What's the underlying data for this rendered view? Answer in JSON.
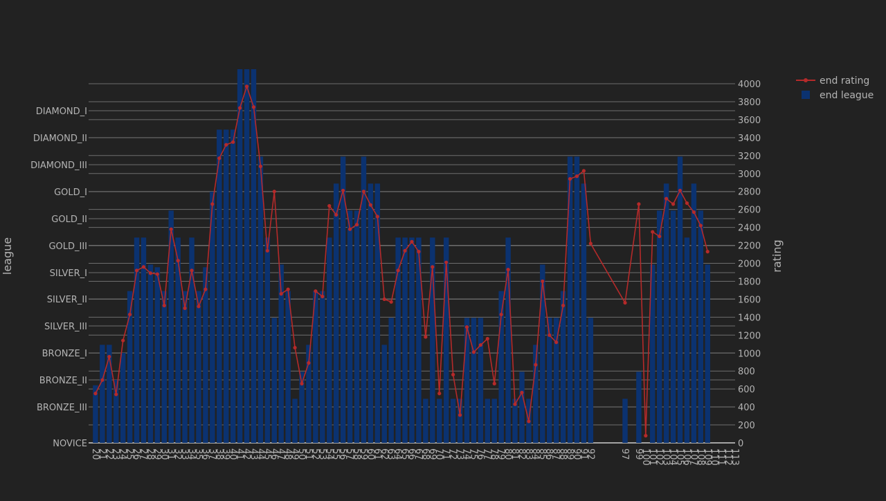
{
  "chart_data": {
    "type": "bar+line",
    "title": "",
    "x_label": "",
    "y_left_label": "league",
    "y_right_label": "rating",
    "y_left_ticks": [
      "NOVICE",
      "BRONZE_III",
      "BRONZE_II",
      "BRONZE_I",
      "SILVER_III",
      "SILVER_II",
      "SILVER_I",
      "GOLD_III",
      "GOLD_II",
      "GOLD_I",
      "DIAMOND_III",
      "DIAMOND_II",
      "DIAMOND_I"
    ],
    "y_right_ticks": [
      0,
      200,
      400,
      600,
      800,
      1000,
      1200,
      1400,
      1600,
      1800,
      2000,
      2200,
      2400,
      2600,
      2800,
      3000,
      3200,
      3400,
      3600,
      3800,
      4000
    ],
    "y_right_range": [
      0,
      4000
    ],
    "x_range": [
      19,
      113
    ],
    "grid": true,
    "legend_position": "top-right",
    "colors": {
      "background": "#222222",
      "bar": "#0b3270",
      "line": "#b52a2a",
      "text": "#b4b4b4",
      "grid": "#6e6e6e"
    },
    "series": [
      {
        "name": "end rating",
        "type": "line",
        "points": [
          [
            20,
            550
          ],
          [
            21,
            700
          ],
          [
            22,
            960
          ],
          [
            23,
            540
          ],
          [
            24,
            1140
          ],
          [
            25,
            1430
          ],
          [
            26,
            1920
          ],
          [
            27,
            1960
          ],
          [
            28,
            1890
          ],
          [
            29,
            1880
          ],
          [
            30,
            1530
          ],
          [
            31,
            2380
          ],
          [
            32,
            2030
          ],
          [
            33,
            1500
          ],
          [
            34,
            1920
          ],
          [
            35,
            1520
          ],
          [
            36,
            1710
          ],
          [
            37,
            2660
          ],
          [
            38,
            3170
          ],
          [
            39,
            3320
          ],
          [
            40,
            3350
          ],
          [
            41,
            3730
          ],
          [
            42,
            3970
          ],
          [
            43,
            3740
          ],
          [
            44,
            3080
          ],
          [
            45,
            2140
          ],
          [
            46,
            2800
          ],
          [
            47,
            1660
          ],
          [
            48,
            1710
          ],
          [
            49,
            1060
          ],
          [
            50,
            660
          ],
          [
            51,
            890
          ],
          [
            52,
            1690
          ],
          [
            53,
            1630
          ],
          [
            54,
            2640
          ],
          [
            55,
            2540
          ],
          [
            56,
            2810
          ],
          [
            57,
            2380
          ],
          [
            58,
            2430
          ],
          [
            59,
            2800
          ],
          [
            60,
            2650
          ],
          [
            61,
            2520
          ],
          [
            62,
            1600
          ],
          [
            63,
            1570
          ],
          [
            64,
            1920
          ],
          [
            65,
            2140
          ],
          [
            66,
            2240
          ],
          [
            67,
            2130
          ],
          [
            68,
            1180
          ],
          [
            69,
            1960
          ],
          [
            70,
            550
          ],
          [
            71,
            2010
          ],
          [
            72,
            760
          ],
          [
            73,
            310
          ],
          [
            74,
            1290
          ],
          [
            75,
            1010
          ],
          [
            76,
            1090
          ],
          [
            77,
            1160
          ],
          [
            78,
            660
          ],
          [
            79,
            1430
          ],
          [
            80,
            1930
          ],
          [
            81,
            430
          ],
          [
            82,
            560
          ],
          [
            83,
            240
          ],
          [
            84,
            870
          ],
          [
            85,
            1800
          ],
          [
            86,
            1200
          ],
          [
            87,
            1120
          ],
          [
            88,
            1530
          ],
          [
            89,
            2940
          ],
          [
            90,
            2970
          ],
          [
            91,
            3030
          ],
          [
            92,
            2220
          ],
          [
            97,
            1560
          ],
          [
            99,
            2660
          ],
          [
            100,
            80
          ],
          [
            101,
            2350
          ],
          [
            102,
            2300
          ],
          [
            103,
            2720
          ],
          [
            104,
            2660
          ],
          [
            105,
            2810
          ],
          [
            106,
            2670
          ],
          [
            107,
            2570
          ],
          [
            108,
            2420
          ],
          [
            109,
            2130
          ]
        ]
      },
      {
        "name": "end league",
        "type": "bar",
        "note_units": "league ticks: NOVICE=0 ... DIAMOND_I=12; 13 = above DIAMOND_I",
        "points": [
          [
            20,
            1.8
          ],
          [
            21,
            3.3
          ],
          [
            22,
            3.3
          ],
          [
            23,
            2.0
          ],
          [
            24,
            3.0
          ],
          [
            25,
            5.3
          ],
          [
            26,
            7.3
          ],
          [
            27,
            7.3
          ],
          [
            28,
            6.3
          ],
          [
            29,
            6.2
          ],
          [
            30,
            5.3
          ],
          [
            31,
            8.3
          ],
          [
            32,
            7.3
          ],
          [
            33,
            5.3
          ],
          [
            34,
            7.3
          ],
          [
            35,
            5.3
          ],
          [
            36,
            6.2
          ],
          [
            37,
            9.0
          ],
          [
            38,
            11.3
          ],
          [
            39,
            11.3
          ],
          [
            40,
            11.3
          ],
          [
            41,
            13.6
          ],
          [
            42,
            13.6
          ],
          [
            43,
            13.6
          ],
          [
            44,
            10.3
          ],
          [
            45,
            7.3
          ],
          [
            46,
            4.3
          ],
          [
            47,
            6.3
          ],
          [
            48,
            5.3
          ],
          [
            49,
            1.3
          ],
          [
            50,
            2.3
          ],
          [
            51,
            3.3
          ],
          [
            52,
            5.3
          ],
          [
            53,
            5.3
          ],
          [
            54,
            7.3
          ],
          [
            55,
            9.3
          ],
          [
            56,
            10.3
          ],
          [
            57,
            8.3
          ],
          [
            58,
            8.3
          ],
          [
            59,
            10.3
          ],
          [
            60,
            9.3
          ],
          [
            61,
            9.3
          ],
          [
            62,
            3.3
          ],
          [
            63,
            4.3
          ],
          [
            64,
            7.3
          ],
          [
            65,
            7.3
          ],
          [
            66,
            7.3
          ],
          [
            67,
            7.3
          ],
          [
            68,
            1.3
          ],
          [
            69,
            7.3
          ],
          [
            70,
            1.3
          ],
          [
            71,
            7.3
          ],
          [
            72,
            1.3
          ],
          [
            73,
            1.3
          ],
          [
            74,
            4.3
          ],
          [
            75,
            4.3
          ],
          [
            76,
            4.3
          ],
          [
            77,
            1.3
          ],
          [
            78,
            1.3
          ],
          [
            79,
            5.3
          ],
          [
            80,
            7.3
          ],
          [
            81,
            1.3
          ],
          [
            82,
            2.3
          ],
          [
            83,
            1.3
          ],
          [
            84,
            3.3
          ],
          [
            85,
            6.3
          ],
          [
            86,
            4.3
          ],
          [
            87,
            4.3
          ],
          [
            88,
            5.3
          ],
          [
            89,
            10.3
          ],
          [
            90,
            10.3
          ],
          [
            91,
            9.3
          ],
          [
            92,
            4.3
          ],
          [
            97,
            1.3
          ],
          [
            99,
            2.3
          ],
          [
            100,
            0
          ],
          [
            101,
            6.3
          ],
          [
            102,
            8.3
          ],
          [
            103,
            9.3
          ],
          [
            104,
            8.3
          ],
          [
            105,
            10.3
          ],
          [
            106,
            7.3
          ],
          [
            107,
            9.3
          ],
          [
            108,
            8.3
          ],
          [
            109,
            6.3
          ]
        ]
      }
    ],
    "x_tick_labels": [
      20,
      21,
      22,
      23,
      24,
      25,
      26,
      27,
      28,
      29,
      30,
      31,
      32,
      33,
      34,
      35,
      36,
      37,
      38,
      39,
      40,
      41,
      42,
      43,
      44,
      45,
      46,
      47,
      48,
      49,
      50,
      51,
      52,
      53,
      54,
      55,
      56,
      57,
      58,
      59,
      60,
      61,
      62,
      63,
      64,
      65,
      66,
      67,
      68,
      69,
      70,
      71,
      72,
      73,
      74,
      75,
      76,
      77,
      78,
      79,
      80,
      81,
      82,
      83,
      84,
      85,
      86,
      87,
      88,
      89,
      90,
      91,
      92,
      97,
      99,
      100,
      101,
      102,
      103,
      104,
      105,
      106,
      107,
      108,
      109,
      110,
      111,
      112,
      113
    ]
  }
}
